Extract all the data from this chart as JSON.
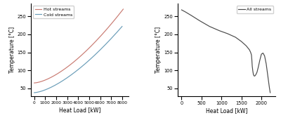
{
  "left_xlabel": "Heat Load [kW]",
  "left_ylabel": "Temperature [°C]",
  "right_xlabel": "Heat Load [kW]",
  "right_ylabel": "Temperature [°C]",
  "left_xlim": [
    -300,
    8600
  ],
  "left_ylim": [
    28,
    285
  ],
  "right_xlim": [
    -100,
    2350
  ],
  "right_ylim": [
    28,
    285
  ],
  "left_xticks": [
    0,
    1000,
    2000,
    3000,
    4000,
    5000,
    6000,
    7000,
    8000
  ],
  "left_yticks": [
    50,
    100,
    150,
    200,
    250
  ],
  "right_xticks": [
    0,
    500,
    1000,
    1500,
    2000
  ],
  "right_yticks": [
    50,
    100,
    150,
    200,
    250
  ],
  "hot_color": "#c97b72",
  "cold_color": "#6a9db8",
  "all_color": "#4a4a4a",
  "legend_left_labels": [
    "Hot streams",
    "Cold streams"
  ],
  "legend_right_label": "All streams",
  "background_color": "#ffffff"
}
